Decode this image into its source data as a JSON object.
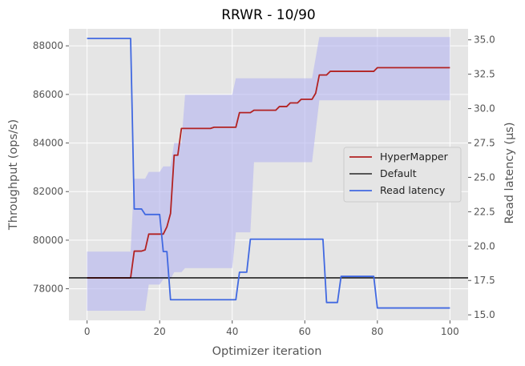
{
  "chart_data": {
    "type": "line",
    "title": "RRWR - 10/90",
    "xlabel": "Optimizer iteration",
    "ylabel_left": "Throughput (ops/s)",
    "ylabel_right": "Read latency (μs)",
    "xlim": [
      -5,
      105
    ],
    "ylim_left": [
      76700,
      88700
    ],
    "ylim_right": [
      14.6,
      35.8
    ],
    "x_ticks": [
      0,
      20,
      40,
      60,
      80,
      100
    ],
    "y_left_ticks": [
      78000,
      80000,
      82000,
      84000,
      86000,
      88000
    ],
    "y_right_ticks": [
      "15.0",
      "17.5",
      "20.0",
      "22.5",
      "25.0",
      "27.5",
      "30.0",
      "32.5",
      "35.0"
    ],
    "grid": true,
    "legend_position": "center-right",
    "colors": {
      "hypermapper": "#b22222",
      "default": "#000000",
      "read_latency": "#4169e1",
      "band": "#b4b4f0",
      "background": "#e5e5e5",
      "grid": "#ffffff"
    },
    "series": [
      {
        "name": "HyperMapper",
        "axis": "left",
        "points": [
          [
            0,
            78450
          ],
          [
            12,
            78450
          ],
          [
            13,
            79550
          ],
          [
            15,
            79550
          ],
          [
            16,
            79600
          ],
          [
            17,
            80250
          ],
          [
            21,
            80250
          ],
          [
            22,
            80550
          ],
          [
            23,
            81100
          ],
          [
            24,
            83500
          ],
          [
            25,
            83500
          ],
          [
            26,
            84600
          ],
          [
            34,
            84600
          ],
          [
            35,
            84650
          ],
          [
            41,
            84650
          ],
          [
            42,
            85250
          ],
          [
            45,
            85250
          ],
          [
            46,
            85350
          ],
          [
            52,
            85350
          ],
          [
            53,
            85500
          ],
          [
            55,
            85500
          ],
          [
            56,
            85650
          ],
          [
            58,
            85650
          ],
          [
            59,
            85800
          ],
          [
            62,
            85800
          ],
          [
            63,
            86050
          ],
          [
            64,
            86800
          ],
          [
            66,
            86800
          ],
          [
            67,
            86950
          ],
          [
            70,
            86950
          ],
          [
            71,
            86950
          ],
          [
            79,
            86950
          ],
          [
            80,
            87100
          ],
          [
            100,
            87100
          ]
        ]
      },
      {
        "name": "Default",
        "axis": "left",
        "points": [
          [
            -5,
            78450
          ],
          [
            105,
            78450
          ]
        ]
      },
      {
        "name": "Read latency",
        "axis": "right",
        "points": [
          [
            0,
            35.1
          ],
          [
            12,
            35.1
          ],
          [
            13,
            22.7
          ],
          [
            15,
            22.7
          ],
          [
            16,
            22.3
          ],
          [
            20,
            22.3
          ],
          [
            21,
            19.6
          ],
          [
            22,
            19.6
          ],
          [
            23,
            16.1
          ],
          [
            41,
            16.1
          ],
          [
            42,
            18.1
          ],
          [
            44,
            18.1
          ],
          [
            45,
            20.5
          ],
          [
            65,
            20.5
          ],
          [
            66,
            15.9
          ],
          [
            69,
            15.9
          ],
          [
            70,
            17.8
          ],
          [
            79,
            17.8
          ],
          [
            80,
            15.5
          ],
          [
            100,
            15.5
          ]
        ],
        "band": {
          "upper": [
            [
              0,
              19.6
            ],
            [
              12,
              19.6
            ],
            [
              13,
              24.9
            ],
            [
              16,
              24.9
            ],
            [
              17,
              25.4
            ],
            [
              20,
              25.4
            ],
            [
              21,
              25.8
            ],
            [
              23,
              25.8
            ],
            [
              24,
              27.5
            ],
            [
              26,
              27.5
            ],
            [
              27,
              31.0
            ],
            [
              40,
              31.0
            ],
            [
              41,
              32.2
            ],
            [
              62,
              32.2
            ],
            [
              64,
              35.2
            ],
            [
              100,
              35.2
            ]
          ],
          "lower": [
            [
              0,
              15.3
            ],
            [
              12,
              15.3
            ],
            [
              15,
              15.3
            ],
            [
              16,
              15.3
            ],
            [
              17,
              17.2
            ],
            [
              20,
              17.2
            ],
            [
              21,
              17.6
            ],
            [
              23,
              17.6
            ],
            [
              24,
              18.1
            ],
            [
              26,
              18.1
            ],
            [
              27,
              18.4
            ],
            [
              40,
              18.4
            ],
            [
              41,
              21.0
            ],
            [
              45,
              21.0
            ],
            [
              46,
              26.1
            ],
            [
              62,
              26.1
            ],
            [
              64,
              30.6
            ],
            [
              100,
              30.6
            ]
          ]
        }
      }
    ]
  }
}
